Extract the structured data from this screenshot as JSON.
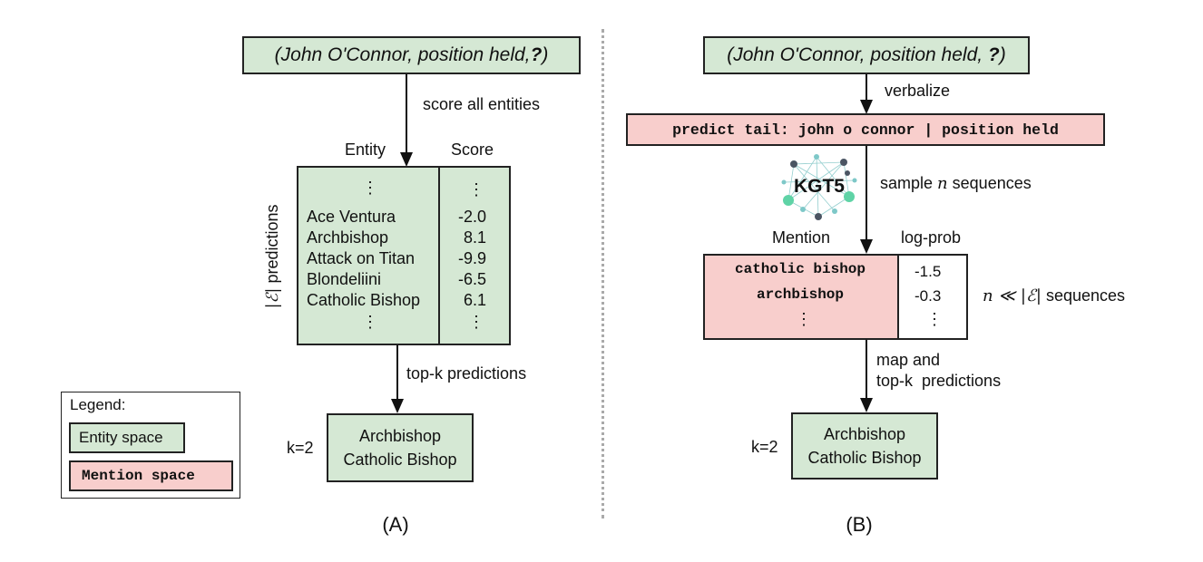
{
  "panel_a": {
    "query_prefix": "(John O'Connor, position held,",
    "query_q": "?",
    "query_suffix": ")",
    "step1": "score all entities",
    "col_entity": "Entity",
    "col_score": "Score",
    "side_label": "predictions",
    "entities": [
      "Ace Ventura",
      "Archbishop",
      "Attack on Titan",
      "Blondeliini",
      "Catholic Bishop"
    ],
    "scores": [
      "-2.0",
      "8.1",
      "-9.9",
      "-6.5",
      "6.1"
    ],
    "step2": "top-k predictions",
    "k_label": "k=2",
    "results": [
      "Archbishop",
      "Catholic Bishop"
    ],
    "caption": "(A)"
  },
  "panel_b": {
    "query_prefix": "(John O'Connor, position held, ",
    "query_q": "?",
    "query_suffix": ")",
    "step1": "verbalize",
    "verbalized": "predict tail: john o connor | position held",
    "model": "KGT5",
    "step2_a": "sample",
    "step2_n": "n",
    "step2_b": "sequences",
    "col_mention": "Mention",
    "col_logprob": "log-prob",
    "mentions": [
      "catholic bishop",
      "archbishop"
    ],
    "logprobs": [
      "-1.5",
      "-0.3"
    ],
    "seq_label": "sequences",
    "step3_line1": "map and",
    "step3_line2": "top-k  predictions",
    "k_label": "k=2",
    "results": [
      "Archbishop",
      "Catholic Bishop"
    ],
    "caption": "(B)"
  },
  "legend": {
    "title": "Legend:",
    "entity_space": "Entity space",
    "mention_space": "Mention space"
  },
  "colors": {
    "entity_fill": "#d5e8d4",
    "mention_fill": "#f8cecc",
    "divider": "#aaaaaa"
  },
  "icons": {
    "vertical_ellipsis": "⋮",
    "model_network": "kgt5-network-icon"
  }
}
